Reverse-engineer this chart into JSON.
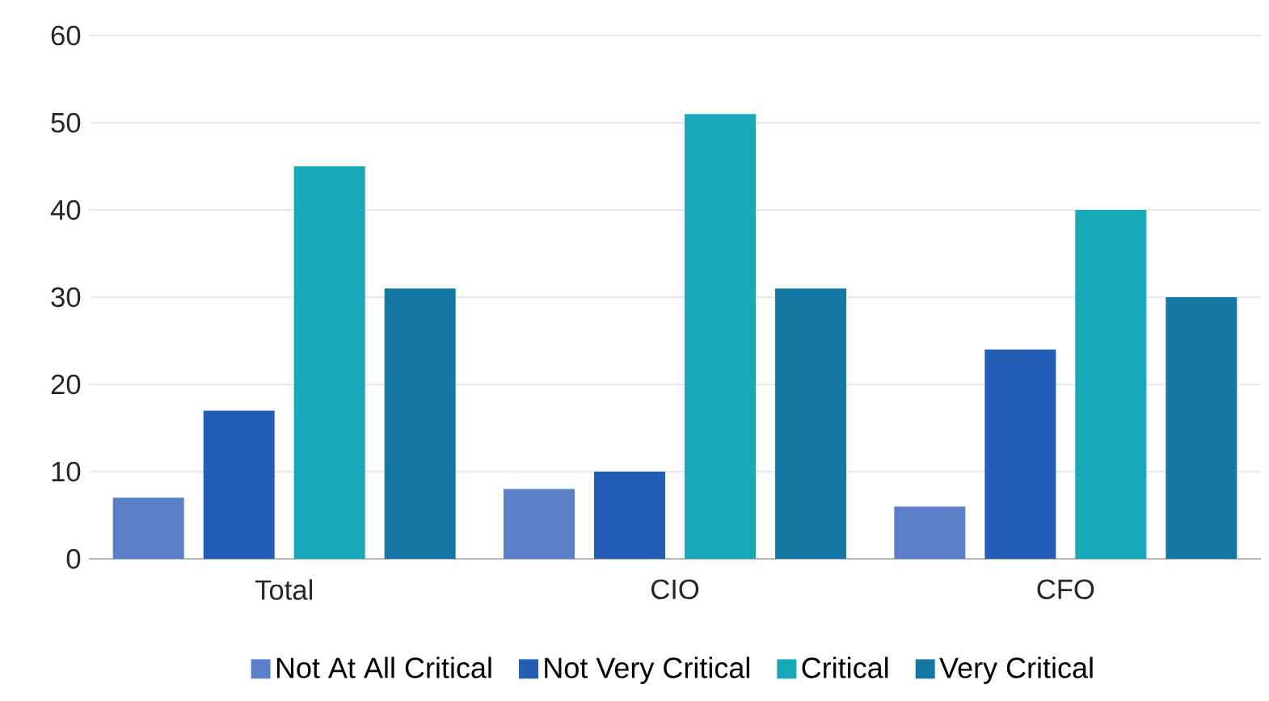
{
  "chart_data": {
    "type": "bar",
    "categories": [
      "Total",
      "CIO",
      "CFO"
    ],
    "series": [
      {
        "name": "Not At All Critical",
        "color": "#5b7fc8",
        "values": [
          7,
          8,
          6
        ]
      },
      {
        "name": "Not Very Critical",
        "color": "#245db5",
        "values": [
          17,
          10,
          24
        ]
      },
      {
        "name": "Critical",
        "color": "#17a9ba",
        "values": [
          45,
          51,
          40
        ]
      },
      {
        "name": "Very Critical",
        "color": "#1478a3",
        "values": [
          31,
          31,
          30
        ]
      }
    ],
    "ylim": [
      0,
      60
    ],
    "yticks": [
      0,
      10,
      20,
      30,
      40,
      50,
      60
    ],
    "grid": "y",
    "legend": "bottom"
  }
}
